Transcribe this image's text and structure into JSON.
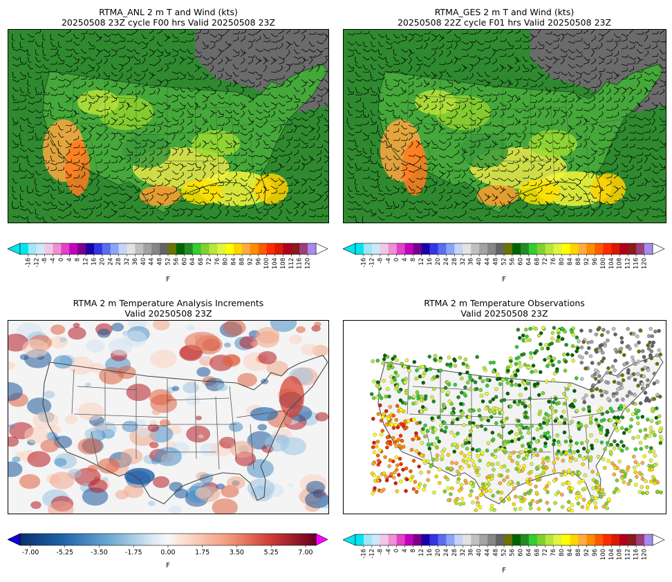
{
  "panels": [
    {
      "title_line1": "RTMA_ANL 2 m T and Wind (kts)",
      "title_line2": "20250508 23Z cycle F00 hrs Valid 20250508 23Z"
    },
    {
      "title_line1": "RTMA_GES 2 m T and Wind (kts)",
      "title_line2": "20250508 22Z cycle F01 hrs Valid 20250508 23Z"
    },
    {
      "title_line1": "RTMA 2 m Temperature Analysis Increments",
      "title_line2": "Valid 20250508 23Z"
    },
    {
      "title_line1": "RTMA 2 m Temperature Observations",
      "title_line2": "Valid 20250508 23Z"
    }
  ],
  "temp_colorbar": {
    "unit_label": "F",
    "ticks": [
      "-16",
      "-12",
      "-8",
      "-4",
      "0",
      "4",
      "8",
      "12",
      "16",
      "20",
      "24",
      "28",
      "32",
      "36",
      "40",
      "44",
      "48",
      "52",
      "56",
      "60",
      "64",
      "68",
      "72",
      "76",
      "80",
      "84",
      "88",
      "92",
      "96",
      "100",
      "104",
      "108",
      "112",
      "116",
      "120"
    ],
    "colors": [
      "#00e5ee",
      "#9fe7f7",
      "#cde9f9",
      "#f3c7e6",
      "#f08fd3",
      "#e441c8",
      "#c200bf",
      "#7a008c",
      "#1a00a8",
      "#3434e4",
      "#5b6cf0",
      "#8aa5f7",
      "#c6d4f7",
      "#e1e1e6",
      "#c0c0c0",
      "#a3a3a3",
      "#868686",
      "#636363",
      "#6c7300",
      "#006400",
      "#228b22",
      "#32cd32",
      "#7fd12e",
      "#b7e63a",
      "#e0f53f",
      "#ffff00",
      "#ffd500",
      "#ffab40",
      "#ff8c00",
      "#ff5a00",
      "#ff2a00",
      "#d81b00",
      "#b0001b",
      "#8b1a1a",
      "#9d3d7b",
      "#a68cf0"
    ],
    "extend_low_color": "#00e5ee",
    "extend_high_color": "#ffffff"
  },
  "incr_colorbar": {
    "unit_label": "F",
    "ticks": [
      "-7.00",
      "-5.25",
      "-3.50",
      "-1.75",
      "0.00",
      "1.75",
      "3.50",
      "5.25",
      "7.00"
    ],
    "extend_low_color": "#1200d8",
    "extend_high_color": "#ff00ff"
  }
}
